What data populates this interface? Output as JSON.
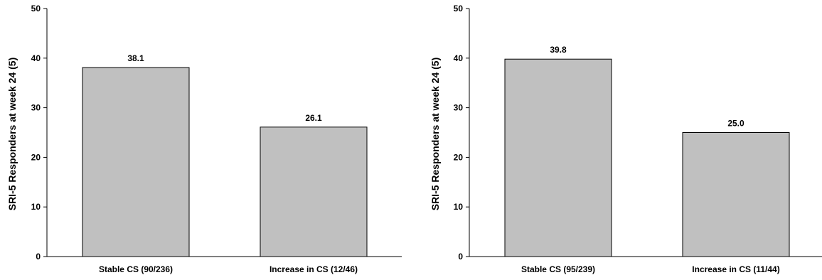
{
  "chart_data": [
    {
      "type": "bar",
      "categories": [
        "Stable CS (90/236)",
        "Increase in CS (12/46)"
      ],
      "values": [
        38.1,
        26.1
      ],
      "value_labels": [
        "38.1",
        "26.1"
      ],
      "title": "",
      "xlabel": "",
      "ylabel": "SRI-5 Responders at week 24 (5)",
      "ylim": [
        0,
        50
      ],
      "yticks": [
        "0",
        "10",
        "20",
        "30",
        "40",
        "50"
      ],
      "grid": false,
      "bar_color": "#c0c0c0",
      "bar_edge_color": "#000000"
    },
    {
      "type": "bar",
      "categories": [
        "Stable CS (95/239)",
        "Increase in CS (11/44)"
      ],
      "values": [
        39.8,
        25.0
      ],
      "value_labels": [
        "39.8",
        "25.0"
      ],
      "title": "",
      "xlabel": "",
      "ylabel": "SRI-5 Responders at week 24 (5)",
      "ylim": [
        0,
        50
      ],
      "yticks": [
        "0",
        "10",
        "20",
        "30",
        "40",
        "50"
      ],
      "grid": false,
      "bar_color": "#c0c0c0",
      "bar_edge_color": "#000000"
    }
  ]
}
